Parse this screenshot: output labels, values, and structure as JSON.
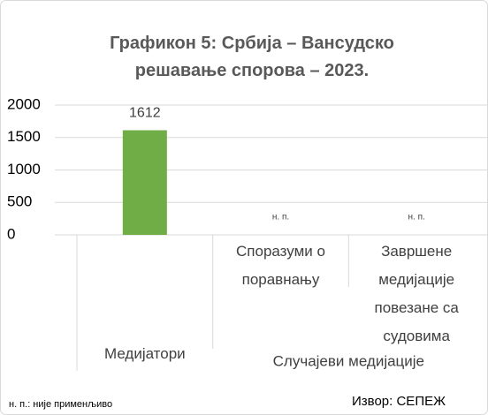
{
  "chart_data": {
    "type": "bar",
    "title": "Графикон 5: Србија – Вансудско решавање спорова – 2023.",
    "categories": [
      "Медијатори",
      "Споразуми о поравнању",
      "Завршене медијације повезане са судовима"
    ],
    "groups": [
      {
        "name": "Случајеви медијације",
        "categories": [
          1,
          2
        ]
      }
    ],
    "values": [
      1612,
      null,
      null
    ],
    "value_labels": [
      "1612",
      "н. п.",
      "н. п."
    ],
    "color": "#70ad47",
    "ylim": [
      0,
      2000
    ],
    "yticks": [
      0,
      500,
      1000,
      1500,
      2000
    ],
    "grid": true,
    "footnote": "н. п.: није применљиво",
    "source": "Извор: СЕПЕЖ"
  }
}
